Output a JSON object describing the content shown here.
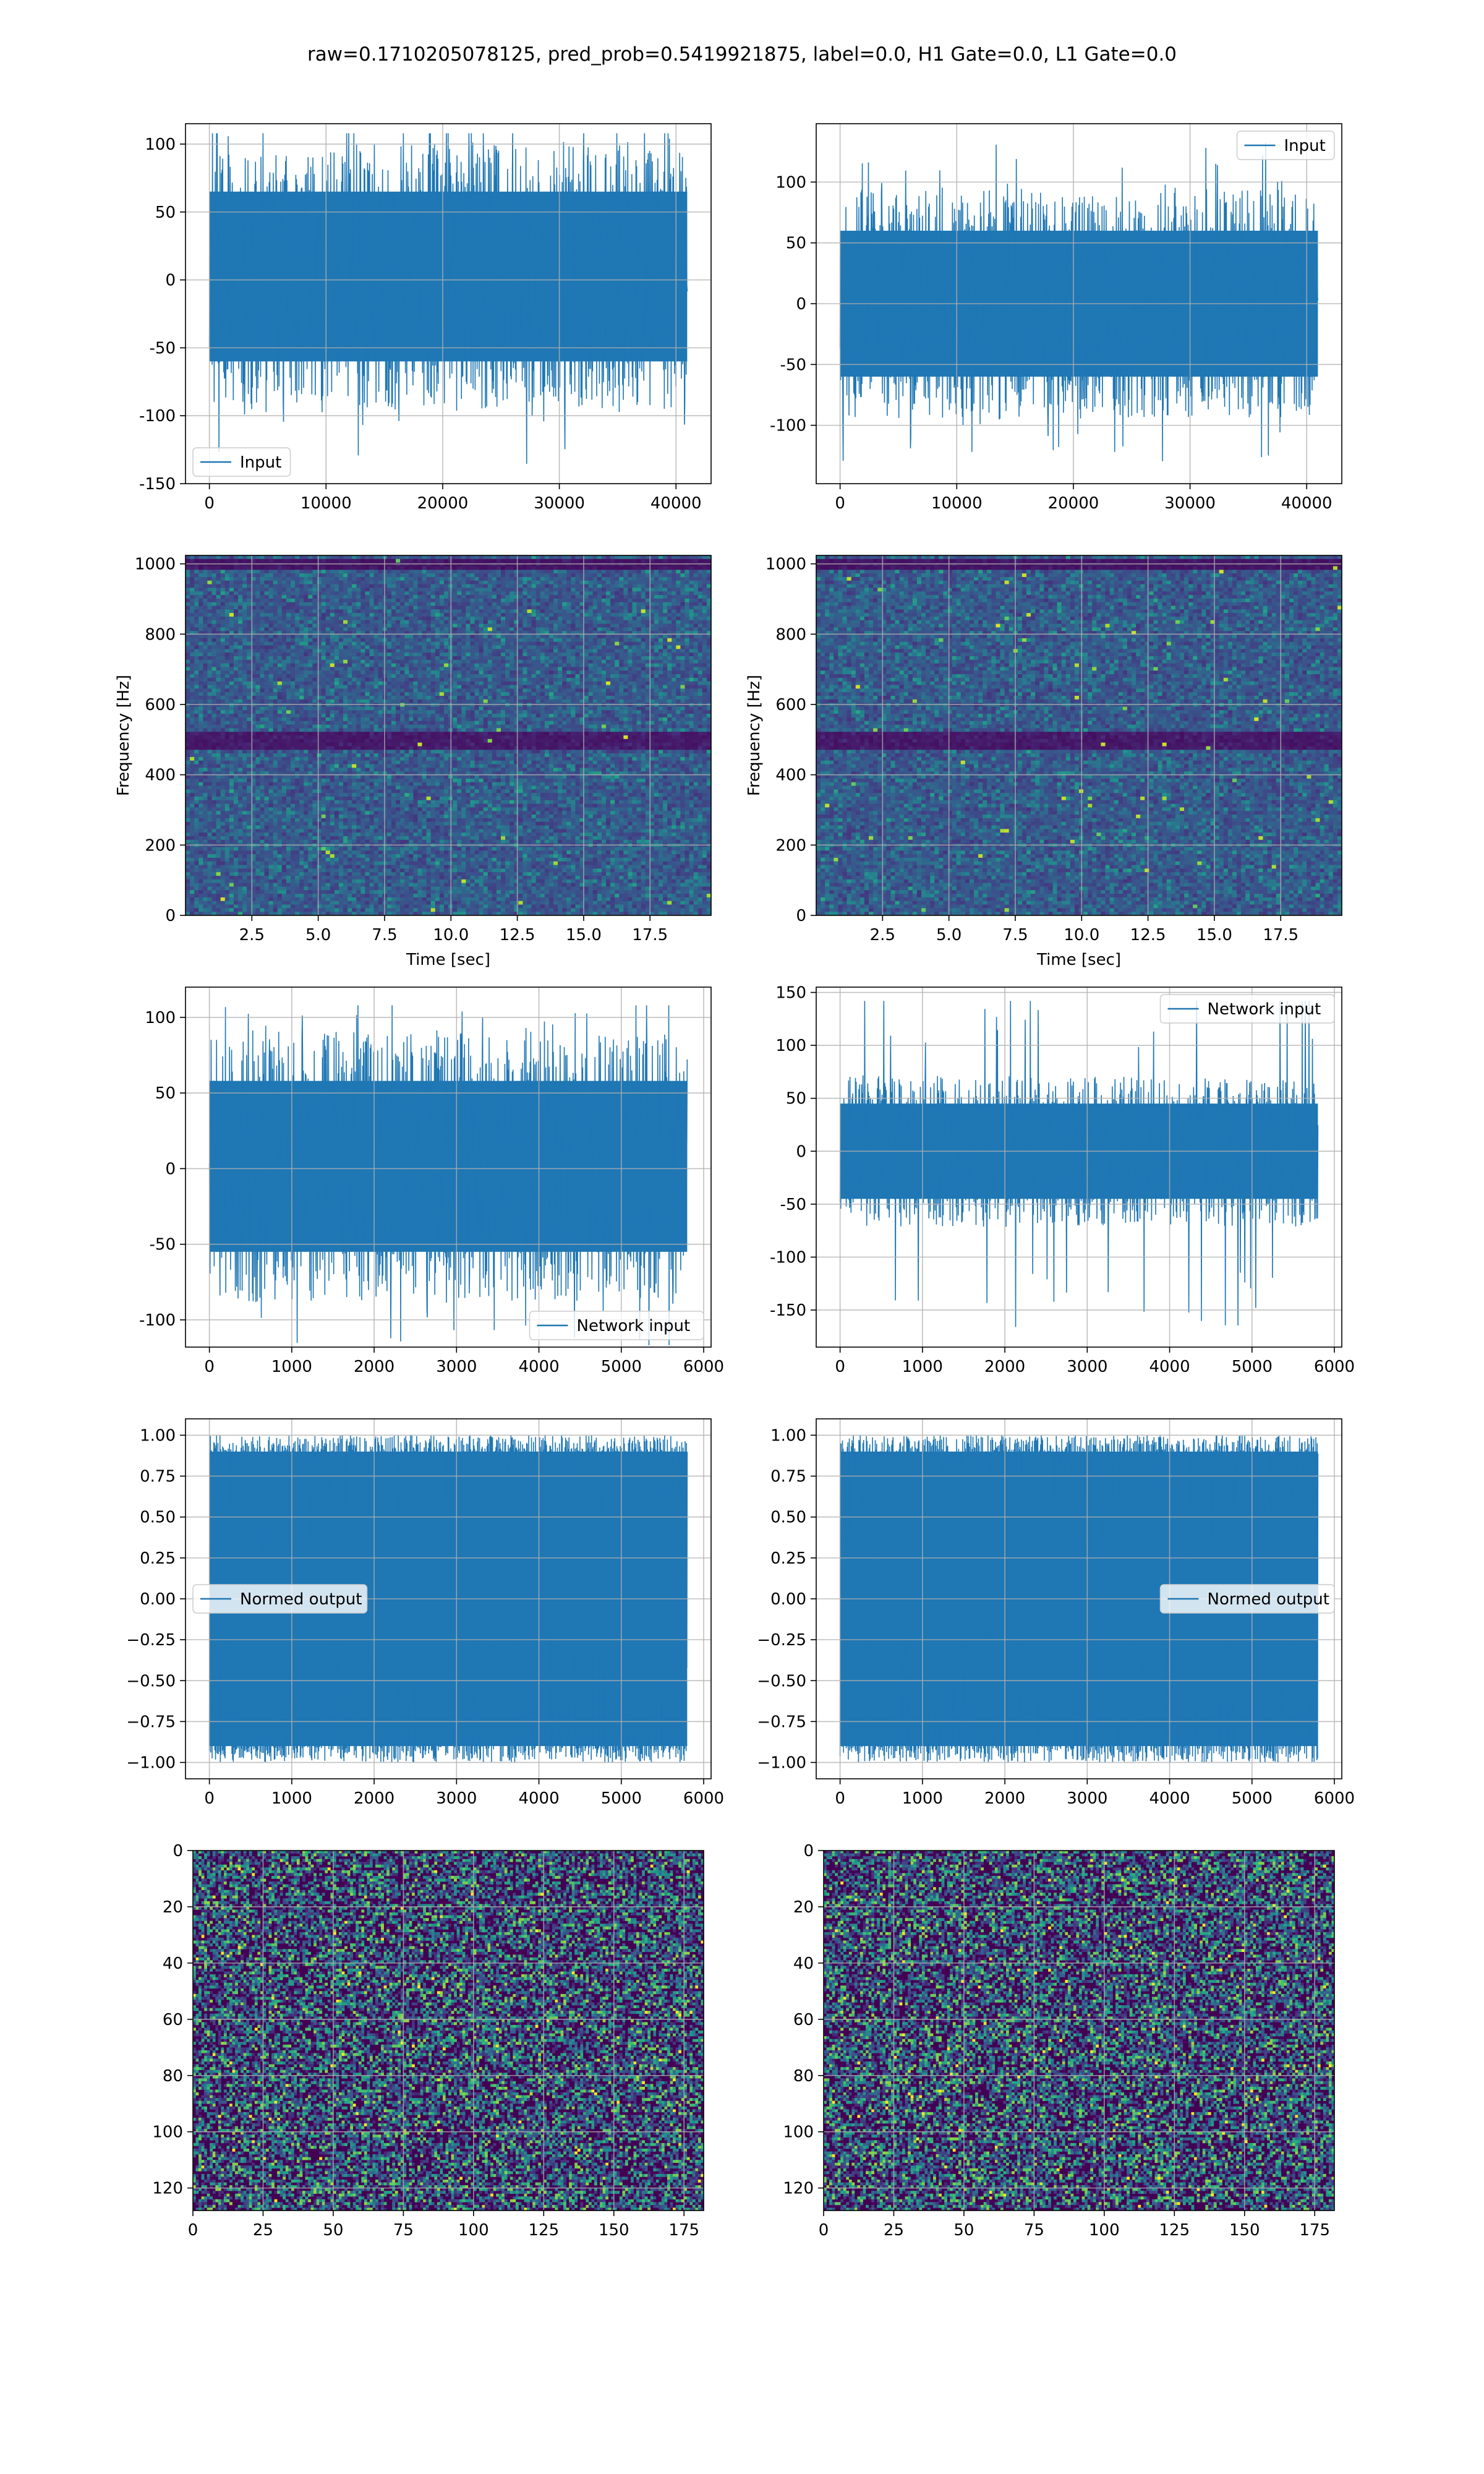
{
  "suptitle": "raw=0.1710205078125, pred_prob=0.5419921875, label=0.0, H1 Gate=0.0, L1 Gate=0.0",
  "colors": {
    "line": "#1f77b4",
    "grid": "#b0b0b0",
    "axes": "#000000",
    "viridis_dark": "#440154"
  },
  "chart_data": [
    {
      "id": "input-h1",
      "type": "line",
      "title": "",
      "xlabel": "",
      "ylabel": "",
      "xlim": [
        -2048,
        43008
      ],
      "ylim": [
        -150,
        115
      ],
      "xticks": [
        0,
        10000,
        20000,
        30000,
        40000
      ],
      "yticks": [
        -150,
        -100,
        -50,
        0,
        50,
        100
      ],
      "grid": true,
      "legend": {
        "labels": [
          "Input"
        ],
        "loc": "lower left"
      },
      "series": [
        {
          "name": "Input",
          "n_samples": 40960,
          "x_range": [
            0,
            40960
          ],
          "envelope": {
            "typical_low": -60,
            "typical_high": 65,
            "min": -140,
            "max": 108
          }
        }
      ]
    },
    {
      "id": "input-l1",
      "type": "line",
      "title": "",
      "xlabel": "",
      "ylabel": "",
      "xlim": [
        -2048,
        43008
      ],
      "ylim": [
        -148,
        148
      ],
      "xticks": [
        0,
        10000,
        20000,
        30000,
        40000
      ],
      "yticks": [
        -100,
        -50,
        0,
        50,
        100
      ],
      "grid": true,
      "legend": {
        "labels": [
          "Input"
        ],
        "loc": "upper right"
      },
      "series": [
        {
          "name": "Input",
          "n_samples": 40960,
          "x_range": [
            0,
            40960
          ],
          "envelope": {
            "typical_low": -60,
            "typical_high": 60,
            "min": -135,
            "max": 136
          }
        }
      ]
    },
    {
      "id": "spectrogram-h1",
      "type": "heatmap",
      "title": "",
      "xlabel": "Time [sec]",
      "ylabel": "Frequency [Hz]",
      "xlim": [
        0,
        19.8
      ],
      "ylim": [
        0,
        1024
      ],
      "xticks": [
        2.5,
        5.0,
        7.5,
        10.0,
        12.5,
        15.0,
        17.5
      ],
      "yticks": [
        0,
        200,
        400,
        600,
        800,
        1000
      ],
      "grid": true,
      "colormap": "viridis",
      "notes": [
        "dark band near 500 Hz",
        "dark band near 1000 Hz"
      ]
    },
    {
      "id": "spectrogram-l1",
      "type": "heatmap",
      "title": "",
      "xlabel": "Time [sec]",
      "ylabel": "Frequency [Hz]",
      "xlim": [
        0,
        19.8
      ],
      "ylim": [
        0,
        1024
      ],
      "xticks": [
        2.5,
        5.0,
        7.5,
        10.0,
        12.5,
        15.0,
        17.5
      ],
      "yticks": [
        0,
        200,
        400,
        600,
        800,
        1000
      ],
      "grid": true,
      "colormap": "viridis",
      "notes": [
        "dark band near 500 Hz",
        "dark band near 1000 Hz"
      ]
    },
    {
      "id": "network-input-h1",
      "type": "line",
      "title": "",
      "xlabel": "",
      "ylabel": "",
      "xlim": [
        -290,
        6090
      ],
      "ylim": [
        -118,
        120
      ],
      "xticks": [
        0,
        1000,
        2000,
        3000,
        4000,
        5000,
        6000
      ],
      "yticks": [
        -100,
        -50,
        0,
        50,
        100
      ],
      "grid": true,
      "legend": {
        "labels": [
          "Network input"
        ],
        "loc": "lower right"
      },
      "series": [
        {
          "name": "Network input",
          "n_samples": 5800,
          "x_range": [
            0,
            5800
          ],
          "envelope": {
            "typical_low": -55,
            "typical_high": 58,
            "min": -118,
            "max": 108
          }
        }
      ]
    },
    {
      "id": "network-input-l1",
      "type": "line",
      "title": "",
      "xlabel": "",
      "ylabel": "",
      "xlim": [
        -290,
        6090
      ],
      "ylim": [
        -185,
        155
      ],
      "xticks": [
        0,
        1000,
        2000,
        3000,
        4000,
        5000,
        6000
      ],
      "yticks": [
        -150,
        -100,
        -50,
        0,
        50,
        100,
        150
      ],
      "grid": true,
      "legend": {
        "labels": [
          "Network input"
        ],
        "loc": "upper right"
      },
      "series": [
        {
          "name": "Network input",
          "n_samples": 5800,
          "x_range": [
            0,
            5800
          ],
          "envelope": {
            "typical_low": -45,
            "typical_high": 45,
            "min": -170,
            "max": 142
          }
        }
      ]
    },
    {
      "id": "normed-output-h1",
      "type": "line",
      "title": "",
      "xlabel": "",
      "ylabel": "",
      "xlim": [
        -290,
        6090
      ],
      "ylim": [
        -1.1,
        1.1
      ],
      "xticks": [
        0,
        1000,
        2000,
        3000,
        4000,
        5000,
        6000
      ],
      "yticks": [
        -1.0,
        -0.75,
        -0.5,
        -0.25,
        0.0,
        0.25,
        0.5,
        0.75,
        1.0
      ],
      "grid": true,
      "legend": {
        "labels": [
          "Normed output"
        ],
        "loc": "center left"
      },
      "series": [
        {
          "name": "Normed output",
          "n_samples": 5800,
          "x_range": [
            0,
            5800
          ],
          "envelope": {
            "typical_low": -0.9,
            "typical_high": 0.9,
            "min": -1.0,
            "max": 1.0
          }
        }
      ]
    },
    {
      "id": "normed-output-l1",
      "type": "line",
      "title": "",
      "xlabel": "",
      "ylabel": "",
      "xlim": [
        -290,
        6090
      ],
      "ylim": [
        -1.1,
        1.1
      ],
      "xticks": [
        0,
        1000,
        2000,
        3000,
        4000,
        5000,
        6000
      ],
      "yticks": [
        -1.0,
        -0.75,
        -0.5,
        -0.25,
        0.0,
        0.25,
        0.5,
        0.75,
        1.0
      ],
      "grid": true,
      "legend": {
        "labels": [
          "Normed output"
        ],
        "loc": "center right"
      },
      "series": [
        {
          "name": "Normed output",
          "n_samples": 5800,
          "x_range": [
            0,
            5800
          ],
          "envelope": {
            "typical_low": -0.9,
            "typical_high": 0.9,
            "min": -1.0,
            "max": 1.0
          }
        }
      ]
    },
    {
      "id": "matrix-h1",
      "type": "heatmap",
      "title": "",
      "xlabel": "",
      "ylabel": "",
      "rows": 128,
      "cols": 182,
      "xlim": [
        0,
        182
      ],
      "ylim": [
        128,
        0
      ],
      "y_inverted": true,
      "xticks": [
        0,
        25,
        50,
        75,
        100,
        125,
        150,
        175
      ],
      "yticks": [
        0,
        20,
        40,
        60,
        80,
        100,
        120
      ],
      "grid": true,
      "colormap": "viridis"
    },
    {
      "id": "matrix-l1",
      "type": "heatmap",
      "title": "",
      "xlabel": "",
      "ylabel": "",
      "rows": 128,
      "cols": 182,
      "xlim": [
        0,
        182
      ],
      "ylim": [
        128,
        0
      ],
      "y_inverted": true,
      "xticks": [
        0,
        25,
        50,
        75,
        100,
        125,
        150,
        175
      ],
      "yticks": [
        0,
        20,
        40,
        60,
        80,
        100,
        120
      ],
      "grid": true,
      "colormap": "viridis"
    }
  ]
}
